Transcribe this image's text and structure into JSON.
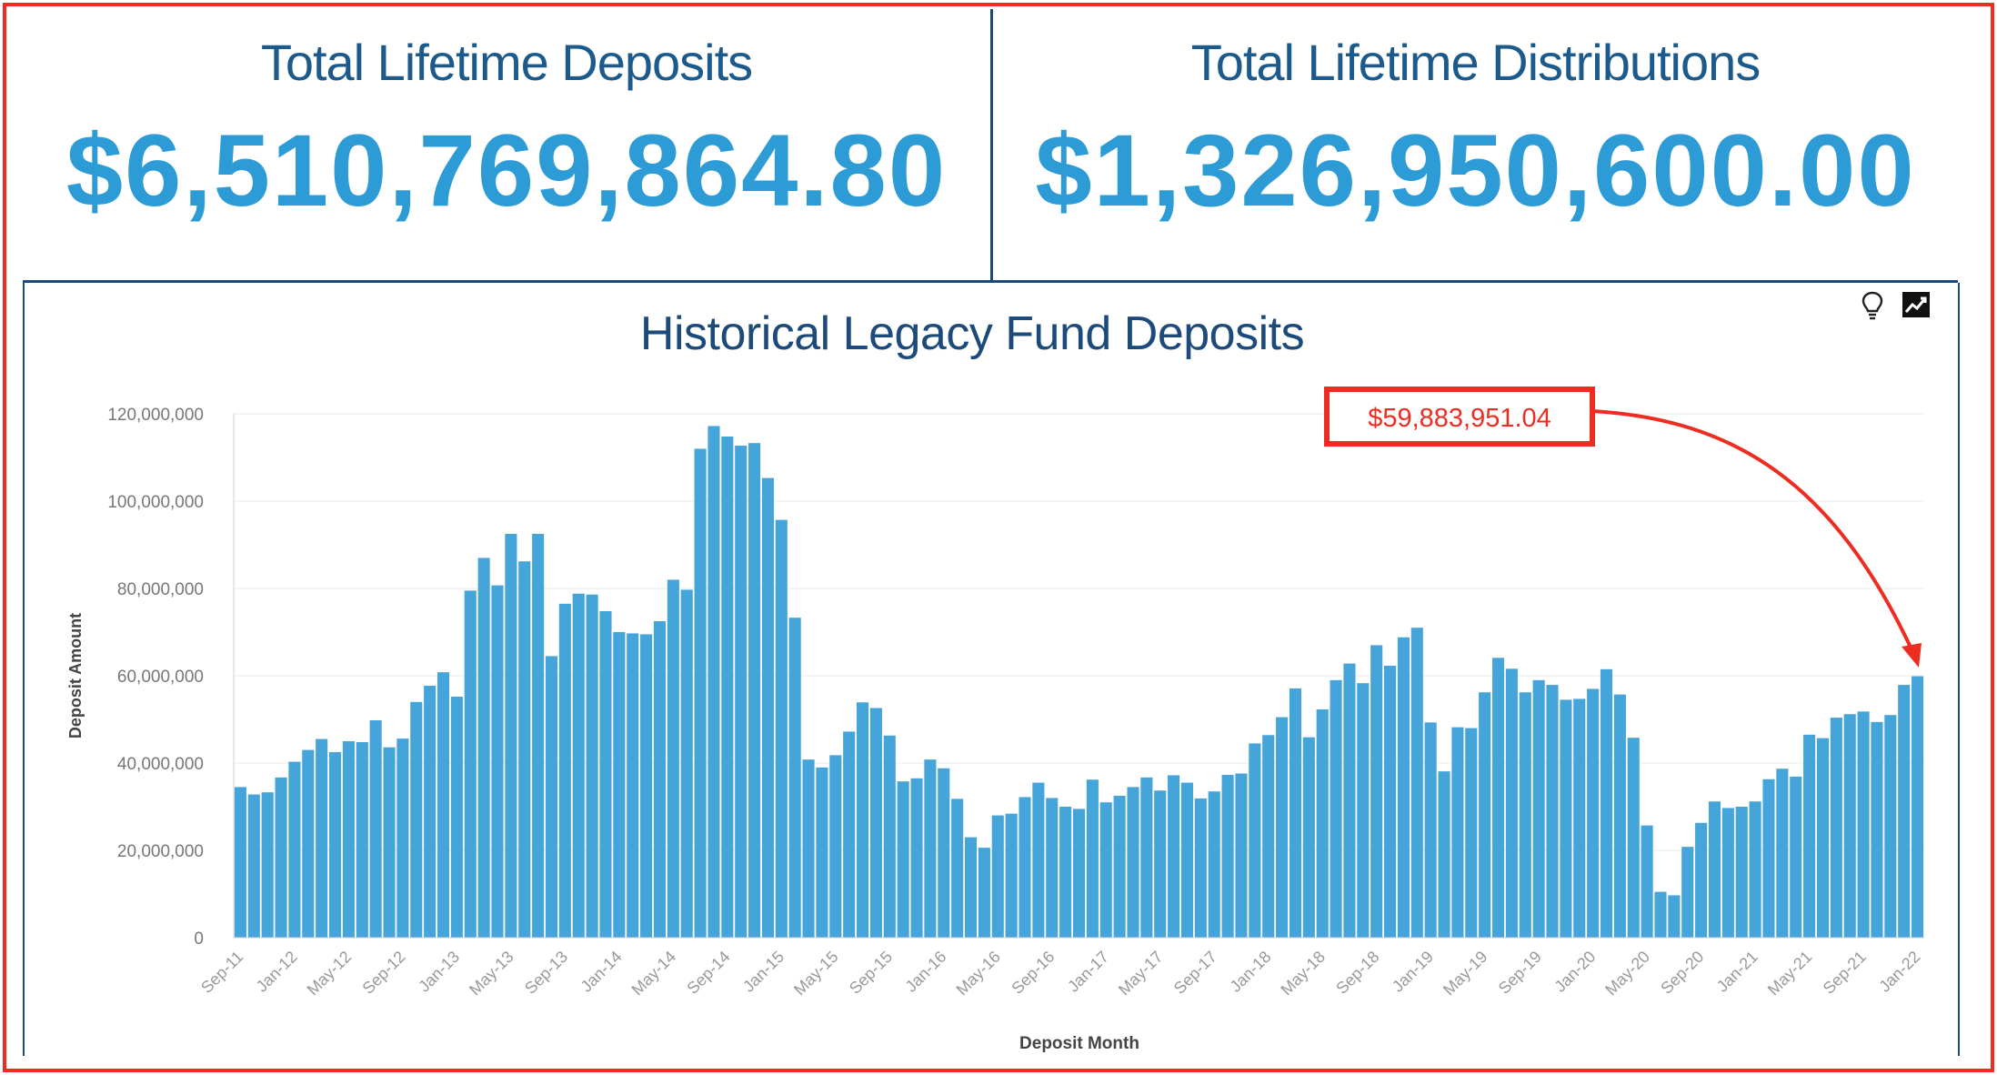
{
  "kpis": {
    "deposits": {
      "title": "Total Lifetime Deposits",
      "value": "$6,510,769,864.80"
    },
    "distributions": {
      "title": "Total Lifetime Distributions",
      "value": "$1,326,950,600.00"
    }
  },
  "chart_panel": {
    "title": "Historical Legacy Fund Deposits",
    "icons": [
      "lightbulb-icon",
      "trend-chart-icon"
    ]
  },
  "callout": {
    "label": "$59,883,951.04",
    "color": "#ee2d22"
  },
  "colors": {
    "bar": "#45a5db",
    "frame": "#ee2d22",
    "divider": "#1c4a7a",
    "kpi_value": "#2d9cd6",
    "kpi_title": "#1c5a8c"
  },
  "chart_data": {
    "type": "bar",
    "title": "Historical Legacy Fund Deposits",
    "xlabel": "Deposit Month",
    "ylabel": "Deposit Amount",
    "ylim": [
      0,
      120000000
    ],
    "yticks": [
      0,
      20000000,
      40000000,
      60000000,
      80000000,
      100000000,
      120000000
    ],
    "ytick_labels": [
      "0",
      "20,000,000",
      "40,000,000",
      "60,000,000",
      "80,000,000",
      "100,000,000",
      "120,000,000"
    ],
    "xtick_labels": [
      "Sep-11",
      "Jan-12",
      "May-12",
      "Sep-12",
      "Jan-13",
      "May-13",
      "Sep-13",
      "Jan-14",
      "May-14",
      "Sep-14",
      "Jan-15",
      "May-15",
      "Sep-15",
      "Jan-16",
      "May-16",
      "Sep-16",
      "Jan-17",
      "May-17",
      "Sep-17",
      "Jan-18",
      "May-18",
      "Sep-18",
      "Jan-19",
      "May-19",
      "Sep-19",
      "Jan-20",
      "May-20",
      "Sep-20",
      "Jan-21",
      "May-21",
      "Sep-21",
      "Jan-22"
    ],
    "grid": true,
    "start_month": "Sep-11",
    "end_month": "Jan-22",
    "values": [
      34500000,
      32800000,
      33300000,
      36700000,
      40300000,
      43000000,
      45500000,
      42500000,
      45000000,
      44800000,
      49800000,
      43600000,
      45600000,
      54000000,
      57700000,
      60800000,
      55200000,
      79500000,
      87000000,
      80700000,
      92500000,
      86200000,
      92500000,
      64500000,
      76500000,
      78800000,
      78600000,
      74800000,
      70000000,
      69700000,
      69500000,
      72500000,
      82000000,
      79700000,
      112000000,
      117200000,
      114800000,
      112700000,
      113300000,
      105300000,
      95700000,
      73300000,
      40800000,
      39000000,
      41800000,
      47200000,
      53900000,
      52600000,
      46300000,
      35800000,
      36500000,
      40800000,
      38800000,
      31800000,
      23000000,
      20600000,
      28000000,
      28400000,
      32200000,
      35500000,
      32000000,
      30000000,
      29500000,
      36200000,
      31000000,
      32500000,
      34500000,
      36700000,
      33700000,
      37200000,
      35500000,
      31900000,
      33500000,
      37300000,
      37600000,
      44500000,
      46400000,
      50500000,
      57100000,
      45900000,
      52300000,
      59000000,
      62800000,
      58300000,
      67000000,
      62300000,
      68800000,
      71000000,
      49300000,
      38100000,
      48200000,
      48000000,
      56200000,
      64100000,
      61600000,
      56200000,
      59000000,
      57900000,
      54500000,
      54700000,
      57000000,
      61500000,
      55700000,
      45800000,
      25700000,
      10500000,
      9700000,
      20800000,
      26300000,
      31200000,
      29700000,
      30000000,
      31200000,
      36300000,
      38700000,
      36900000,
      46500000,
      45700000,
      50400000,
      51200000,
      51800000,
      49400000,
      51000000,
      57900000,
      59883951.04
    ]
  }
}
